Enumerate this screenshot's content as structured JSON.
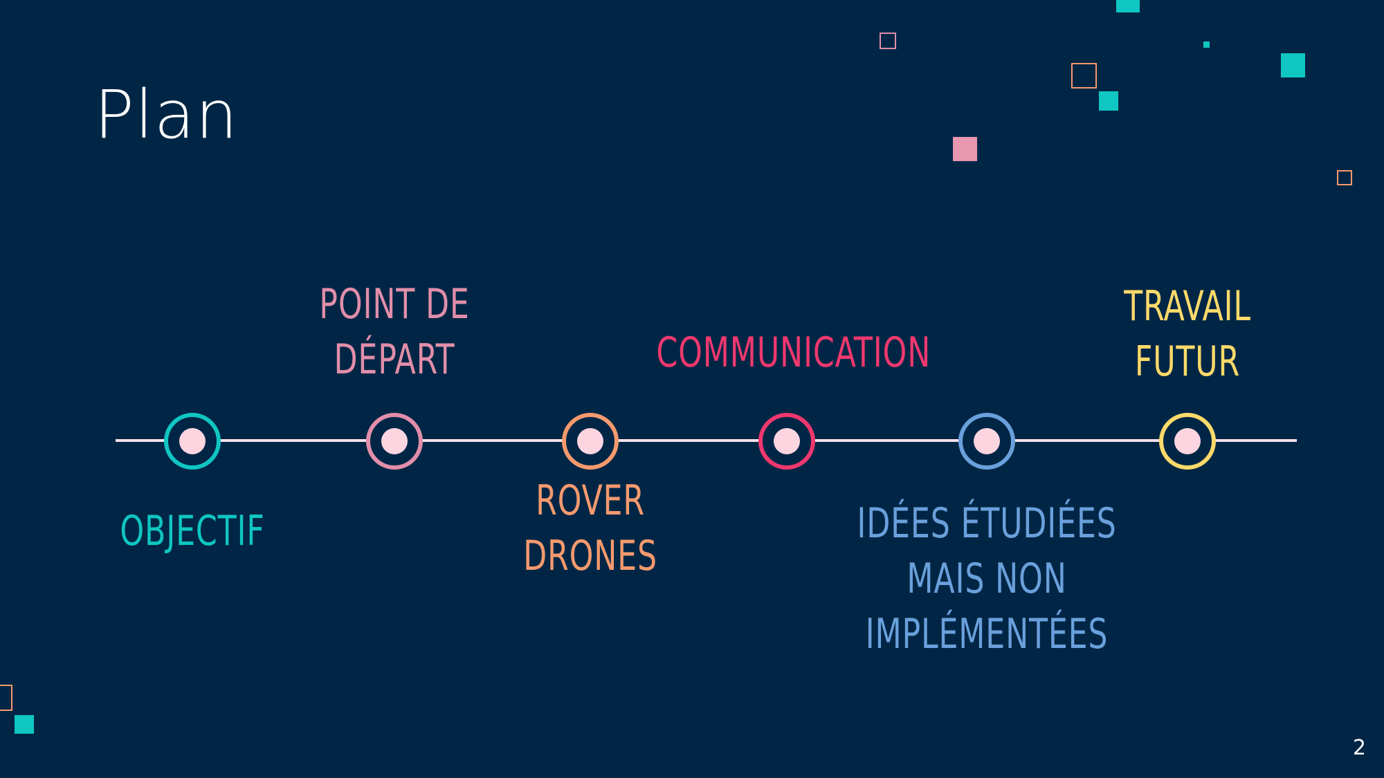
{
  "slide": {
    "title": "Plan",
    "page_number": "2"
  },
  "timeline": {
    "items": [
      {
        "label": "OBJECTIF",
        "color": "#0fc6c2",
        "position": "below"
      },
      {
        "label": "POINT DE\nDÉPART",
        "color": "#e18eaa",
        "position": "above"
      },
      {
        "label": "ROVER\nDRONES",
        "color": "#f69a6e",
        "position": "below"
      },
      {
        "label": "COMMUNICATION",
        "color": "#f0386f",
        "position": "above"
      },
      {
        "label": "IDÉES ÉTUDIÉES\nMAIS NON\nIMPLÉMENTÉES",
        "color": "#6aa0dc",
        "position": "below"
      },
      {
        "label": "TRAVAIL\nFUTUR",
        "color": "#fdda6a",
        "position": "above"
      }
    ],
    "line_color": "#fde3ec",
    "dot_color": "#fcd5e1"
  },
  "colors": {
    "background": "#012645",
    "teal": "#0fc6c2",
    "pink": "#e18eaa",
    "orange": "#f69a6e"
  }
}
